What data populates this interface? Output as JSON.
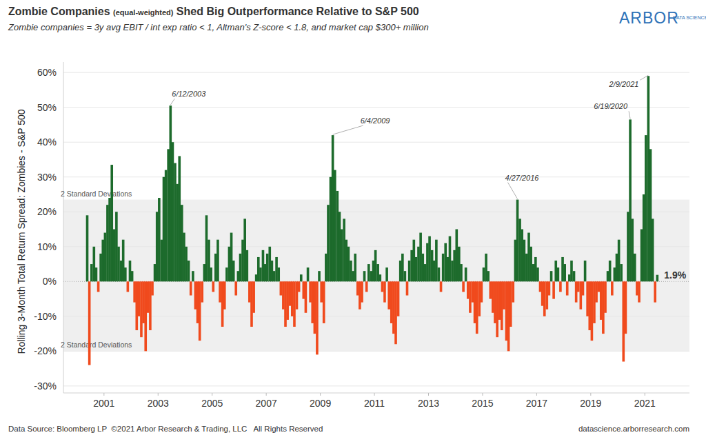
{
  "chart_data": {
    "type": "bar",
    "title": "Zombie Companies (equal-weighted) Shed Big Outperformance Relative to S&P 500",
    "subtitle": "Zombie companies = 3y avg EBIT / int exp ratio < 1, Altman's Z-score < 1.8, and market cap $300+ million",
    "y_label": "Rolling 3-Month Total Return Spread: Zombies - S&P 500",
    "logo": {
      "text": "ARBOR",
      "sub": "DATA SCIENCE"
    },
    "source": "Data Source: Bloomberg LP  ©2021 Arbor Research & Trading, LLC   All Rights Reserved",
    "website": "datascience.arborresearch.com",
    "grid": true,
    "xlim": [
      1999.5,
      2022.65
    ],
    "xticks": [
      2001,
      2003,
      2005,
      2007,
      2009,
      2011,
      2013,
      2015,
      2017,
      2019,
      2021
    ],
    "ylim": [
      -32,
      63
    ],
    "yticks": [
      {
        "value": -30,
        "label": "-30%"
      },
      {
        "value": -20,
        "label": "-20%"
      },
      {
        "value": -10,
        "label": "-10%"
      },
      {
        "value": 0,
        "label": "0%"
      },
      {
        "value": 10,
        "label": "10%"
      },
      {
        "value": 20,
        "label": "20%"
      },
      {
        "value": 30,
        "label": "30%"
      },
      {
        "value": 40,
        "label": "40%"
      },
      {
        "value": 50,
        "label": "50%"
      },
      {
        "value": 60,
        "label": "60%"
      }
    ],
    "std_band": {
      "upper": 23.5,
      "lower": -20,
      "labels": [
        "2 Standard Deviations",
        "2 Standard Deviations"
      ]
    },
    "x": [
      2000.38,
      2000.46,
      2000.54,
      2000.63,
      2000.71,
      2000.79,
      2000.88,
      2000.96,
      2001.04,
      2001.13,
      2001.21,
      2001.29,
      2001.38,
      2001.46,
      2001.54,
      2001.63,
      2001.71,
      2001.79,
      2001.88,
      2001.96,
      2002.04,
      2002.13,
      2002.21,
      2002.29,
      2002.38,
      2002.46,
      2002.54,
      2002.63,
      2002.71,
      2002.79,
      2002.88,
      2002.96,
      2003.04,
      2003.13,
      2003.21,
      2003.29,
      2003.38,
      2003.46,
      2003.54,
      2003.63,
      2003.71,
      2003.79,
      2003.88,
      2003.96,
      2004.04,
      2004.13,
      2004.21,
      2004.29,
      2004.38,
      2004.46,
      2004.54,
      2004.63,
      2004.71,
      2004.79,
      2004.88,
      2004.96,
      2005.04,
      2005.13,
      2005.21,
      2005.29,
      2005.38,
      2005.46,
      2005.54,
      2005.63,
      2005.71,
      2005.79,
      2005.88,
      2005.96,
      2006.04,
      2006.13,
      2006.21,
      2006.29,
      2006.38,
      2006.46,
      2006.54,
      2006.63,
      2006.71,
      2006.79,
      2006.88,
      2006.96,
      2007.04,
      2007.13,
      2007.21,
      2007.29,
      2007.38,
      2007.46,
      2007.54,
      2007.63,
      2007.71,
      2007.79,
      2007.88,
      2007.96,
      2008.04,
      2008.13,
      2008.21,
      2008.29,
      2008.38,
      2008.46,
      2008.54,
      2008.63,
      2008.71,
      2008.79,
      2008.88,
      2008.96,
      2009.04,
      2009.13,
      2009.21,
      2009.29,
      2009.38,
      2009.46,
      2009.54,
      2009.63,
      2009.71,
      2009.79,
      2009.88,
      2009.96,
      2010.04,
      2010.13,
      2010.21,
      2010.29,
      2010.38,
      2010.46,
      2010.54,
      2010.63,
      2010.71,
      2010.79,
      2010.88,
      2010.96,
      2011.04,
      2011.13,
      2011.21,
      2011.29,
      2011.38,
      2011.46,
      2011.54,
      2011.63,
      2011.71,
      2011.79,
      2011.88,
      2011.96,
      2012.04,
      2012.13,
      2012.21,
      2012.29,
      2012.38,
      2012.46,
      2012.54,
      2012.63,
      2012.71,
      2012.79,
      2012.88,
      2012.96,
      2013.04,
      2013.13,
      2013.21,
      2013.29,
      2013.38,
      2013.46,
      2013.54,
      2013.63,
      2013.71,
      2013.79,
      2013.88,
      2013.96,
      2014.04,
      2014.13,
      2014.21,
      2014.29,
      2014.38,
      2014.46,
      2014.54,
      2014.63,
      2014.71,
      2014.79,
      2014.88,
      2014.96,
      2015.04,
      2015.13,
      2015.21,
      2015.29,
      2015.38,
      2015.46,
      2015.54,
      2015.63,
      2015.71,
      2015.79,
      2015.88,
      2015.96,
      2016.04,
      2016.13,
      2016.21,
      2016.29,
      2016.38,
      2016.46,
      2016.54,
      2016.63,
      2016.71,
      2016.79,
      2016.88,
      2016.96,
      2017.04,
      2017.13,
      2017.21,
      2017.29,
      2017.38,
      2017.46,
      2017.54,
      2017.63,
      2017.71,
      2017.79,
      2017.88,
      2017.96,
      2018.04,
      2018.13,
      2018.21,
      2018.29,
      2018.38,
      2018.46,
      2018.54,
      2018.63,
      2018.71,
      2018.79,
      2018.88,
      2018.96,
      2019.04,
      2019.13,
      2019.21,
      2019.29,
      2019.38,
      2019.46,
      2019.54,
      2019.63,
      2019.71,
      2019.79,
      2019.88,
      2019.96,
      2020.04,
      2020.13,
      2020.21,
      2020.29,
      2020.38,
      2020.46,
      2020.54,
      2020.63,
      2020.71,
      2020.79,
      2020.88,
      2020.96,
      2021.04,
      2021.13,
      2021.21,
      2021.29,
      2021.38,
      2021.46
    ],
    "values": [
      19,
      -24,
      5,
      10,
      4,
      -3,
      8,
      12,
      14,
      22,
      24,
      33.5,
      15,
      20,
      10,
      6,
      12,
      4,
      -3,
      6,
      3,
      -6,
      -14,
      -10,
      -16,
      -12,
      -20,
      -9,
      -14,
      -4,
      5,
      20,
      24,
      12,
      30,
      32,
      38,
      50.5,
      40,
      34,
      28,
      36,
      22,
      14,
      10,
      6,
      -4,
      3,
      -8,
      -12,
      -17,
      -6,
      5,
      19,
      12,
      4,
      -3,
      8,
      12,
      -6,
      -13,
      -8,
      4,
      10,
      14,
      6,
      -4,
      3,
      8,
      12,
      18,
      9,
      -6,
      -13,
      -9,
      2,
      7,
      4,
      9,
      5,
      8,
      10,
      6,
      3,
      7,
      4,
      -4,
      -8,
      -13,
      -11,
      -7,
      -10,
      -13,
      -8,
      -3,
      2,
      -5,
      -9,
      4,
      -6,
      -12,
      -15,
      -21,
      3,
      -6,
      -12,
      8,
      22,
      30,
      42,
      32,
      26,
      20,
      15,
      18,
      12,
      10,
      6,
      3,
      8,
      -4,
      -8,
      -6,
      3,
      -3,
      5,
      3,
      6,
      9,
      5,
      2,
      -3,
      -6,
      4,
      -8,
      -12,
      -15,
      -18,
      -10,
      6,
      8,
      3,
      -4,
      6,
      9,
      12,
      7,
      10,
      14,
      8,
      5,
      11,
      13,
      9,
      6,
      12,
      4,
      -3,
      8,
      11,
      7,
      13,
      6,
      9,
      15,
      10,
      5,
      -3,
      4,
      -5,
      -9,
      -6,
      -12,
      -15,
      -10,
      -6,
      4,
      8,
      3,
      -5,
      -9,
      -12,
      -16,
      -11,
      -14,
      -8,
      -17,
      -20,
      -13,
      -6,
      12,
      23.5,
      18,
      15,
      12,
      8,
      14,
      10,
      5,
      7,
      4,
      -3,
      -7,
      -10,
      -8,
      -4,
      3,
      -5,
      6,
      4,
      -3,
      7,
      5,
      -4,
      2,
      6,
      3,
      -6,
      -3,
      -8,
      -4,
      6,
      -10,
      -14,
      -17,
      -12,
      -6,
      -3,
      -11,
      -15,
      -9,
      3,
      6,
      -4,
      4,
      8,
      12,
      5,
      -23,
      -15,
      20,
      46.5,
      18,
      8,
      -4,
      -6,
      15,
      25,
      42,
      59,
      38,
      18,
      -6,
      1.9
    ],
    "colors": [
      "#1d6b2c",
      "#f04a1d",
      "#1d6b2c",
      "#1d6b2c",
      "#1d6b2c",
      "#f04a1d",
      "#1d6b2c",
      "#1d6b2c",
      "#1d6b2c",
      "#1d6b2c",
      "#1d6b2c",
      "#1d6b2c",
      "#1d6b2c",
      "#1d6b2c",
      "#1d6b2c",
      "#1d6b2c",
      "#1d6b2c",
      "#1d6b2c",
      "#f04a1d",
      "#1d6b2c",
      "#1d6b2c",
      "#f04a1d",
      "#f04a1d",
      "#f04a1d",
      "#f04a1d",
      "#f04a1d",
      "#f04a1d",
      "#f04a1d",
      "#f04a1d",
      "#f04a1d",
      "#1d6b2c",
      "#1d6b2c",
      "#1d6b2c",
      "#1d6b2c",
      "#1d6b2c",
      "#1d6b2c",
      "#1d6b2c",
      "#1d6b2c",
      "#1d6b2c",
      "#1d6b2c",
      "#1d6b2c",
      "#1d6b2c",
      "#1d6b2c",
      "#1d6b2c",
      "#1d6b2c",
      "#1d6b2c",
      "#f04a1d",
      "#1d6b2c",
      "#f04a1d",
      "#f04a1d",
      "#f04a1d",
      "#f04a1d",
      "#1d6b2c",
      "#1d6b2c",
      "#1d6b2c",
      "#1d6b2c",
      "#f04a1d",
      "#1d6b2c",
      "#1d6b2c",
      "#f04a1d",
      "#f04a1d",
      "#f04a1d",
      "#1d6b2c",
      "#1d6b2c",
      "#1d6b2c",
      "#1d6b2c",
      "#f04a1d",
      "#1d6b2c",
      "#1d6b2c",
      "#1d6b2c",
      "#1d6b2c",
      "#1d6b2c",
      "#f04a1d",
      "#f04a1d",
      "#f04a1d",
      "#1d6b2c",
      "#1d6b2c",
      "#1d6b2c",
      "#1d6b2c",
      "#1d6b2c",
      "#1d6b2c",
      "#1d6b2c",
      "#1d6b2c",
      "#1d6b2c",
      "#1d6b2c",
      "#1d6b2c",
      "#f04a1d",
      "#f04a1d",
      "#f04a1d",
      "#f04a1d",
      "#f04a1d",
      "#f04a1d",
      "#f04a1d",
      "#f04a1d",
      "#f04a1d",
      "#1d6b2c",
      "#f04a1d",
      "#f04a1d",
      "#1d6b2c",
      "#f04a1d",
      "#f04a1d",
      "#f04a1d",
      "#f04a1d",
      "#1d6b2c",
      "#f04a1d",
      "#f04a1d",
      "#1d6b2c",
      "#1d6b2c",
      "#1d6b2c",
      "#1d6b2c",
      "#1d6b2c",
      "#1d6b2c",
      "#1d6b2c",
      "#1d6b2c",
      "#1d6b2c",
      "#1d6b2c",
      "#1d6b2c",
      "#1d6b2c",
      "#1d6b2c",
      "#1d6b2c",
      "#f04a1d",
      "#f04a1d",
      "#f04a1d",
      "#1d6b2c",
      "#f04a1d",
      "#1d6b2c",
      "#1d6b2c",
      "#1d6b2c",
      "#1d6b2c",
      "#1d6b2c",
      "#1d6b2c",
      "#f04a1d",
      "#f04a1d",
      "#1d6b2c",
      "#f04a1d",
      "#f04a1d",
      "#f04a1d",
      "#f04a1d",
      "#f04a1d",
      "#1d6b2c",
      "#1d6b2c",
      "#1d6b2c",
      "#f04a1d",
      "#1d6b2c",
      "#1d6b2c",
      "#1d6b2c",
      "#1d6b2c",
      "#1d6b2c",
      "#1d6b2c",
      "#1d6b2c",
      "#1d6b2c",
      "#1d6b2c",
      "#1d6b2c",
      "#1d6b2c",
      "#1d6b2c",
      "#1d6b2c",
      "#1d6b2c",
      "#f04a1d",
      "#1d6b2c",
      "#1d6b2c",
      "#1d6b2c",
      "#1d6b2c",
      "#1d6b2c",
      "#1d6b2c",
      "#1d6b2c",
      "#1d6b2c",
      "#1d6b2c",
      "#f04a1d",
      "#1d6b2c",
      "#f04a1d",
      "#f04a1d",
      "#f04a1d",
      "#f04a1d",
      "#f04a1d",
      "#f04a1d",
      "#f04a1d",
      "#1d6b2c",
      "#1d6b2c",
      "#1d6b2c",
      "#f04a1d",
      "#f04a1d",
      "#f04a1d",
      "#f04a1d",
      "#f04a1d",
      "#f04a1d",
      "#f04a1d",
      "#f04a1d",
      "#f04a1d",
      "#f04a1d",
      "#f04a1d",
      "#1d6b2c",
      "#1d6b2c",
      "#1d6b2c",
      "#1d6b2c",
      "#1d6b2c",
      "#1d6b2c",
      "#1d6b2c",
      "#1d6b2c",
      "#1d6b2c",
      "#1d6b2c",
      "#1d6b2c",
      "#f04a1d",
      "#f04a1d",
      "#f04a1d",
      "#f04a1d",
      "#f04a1d",
      "#1d6b2c",
      "#f04a1d",
      "#1d6b2c",
      "#1d6b2c",
      "#f04a1d",
      "#1d6b2c",
      "#1d6b2c",
      "#f04a1d",
      "#1d6b2c",
      "#1d6b2c",
      "#1d6b2c",
      "#f04a1d",
      "#f04a1d",
      "#f04a1d",
      "#f04a1d",
      "#1d6b2c",
      "#f04a1d",
      "#f04a1d",
      "#f04a1d",
      "#f04a1d",
      "#f04a1d",
      "#f04a1d",
      "#f04a1d",
      "#f04a1d",
      "#f04a1d",
      "#1d6b2c",
      "#1d6b2c",
      "#f04a1d",
      "#1d6b2c",
      "#1d6b2c",
      "#1d6b2c",
      "#1d6b2c",
      "#f04a1d",
      "#f04a1d",
      "#1d6b2c",
      "#1d6b2c",
      "#1d6b2c",
      "#1d6b2c",
      "#f04a1d",
      "#f04a1d",
      "#1d6b2c",
      "#1d6b2c",
      "#1d6b2c",
      "#1d6b2c",
      "#1d6b2c",
      "#1d6b2c",
      "#f04a1d",
      "#1d6b2c"
    ],
    "annotations": [
      {
        "text": "6/12/2003",
        "x": 2003.46,
        "y": 50.5
      },
      {
        "text": "6/4/2009",
        "x": 2009.46,
        "y": 42
      },
      {
        "text": "4/27/2016",
        "x": 2016.29,
        "y": 23.5
      },
      {
        "text": "6/19/2020",
        "x": 2020.46,
        "y": 46.5
      },
      {
        "text": "2/9/2021",
        "x": 2021.13,
        "y": 59
      },
      {
        "text": "1.9%",
        "x": 2021.46,
        "y": 1.9
      }
    ]
  }
}
